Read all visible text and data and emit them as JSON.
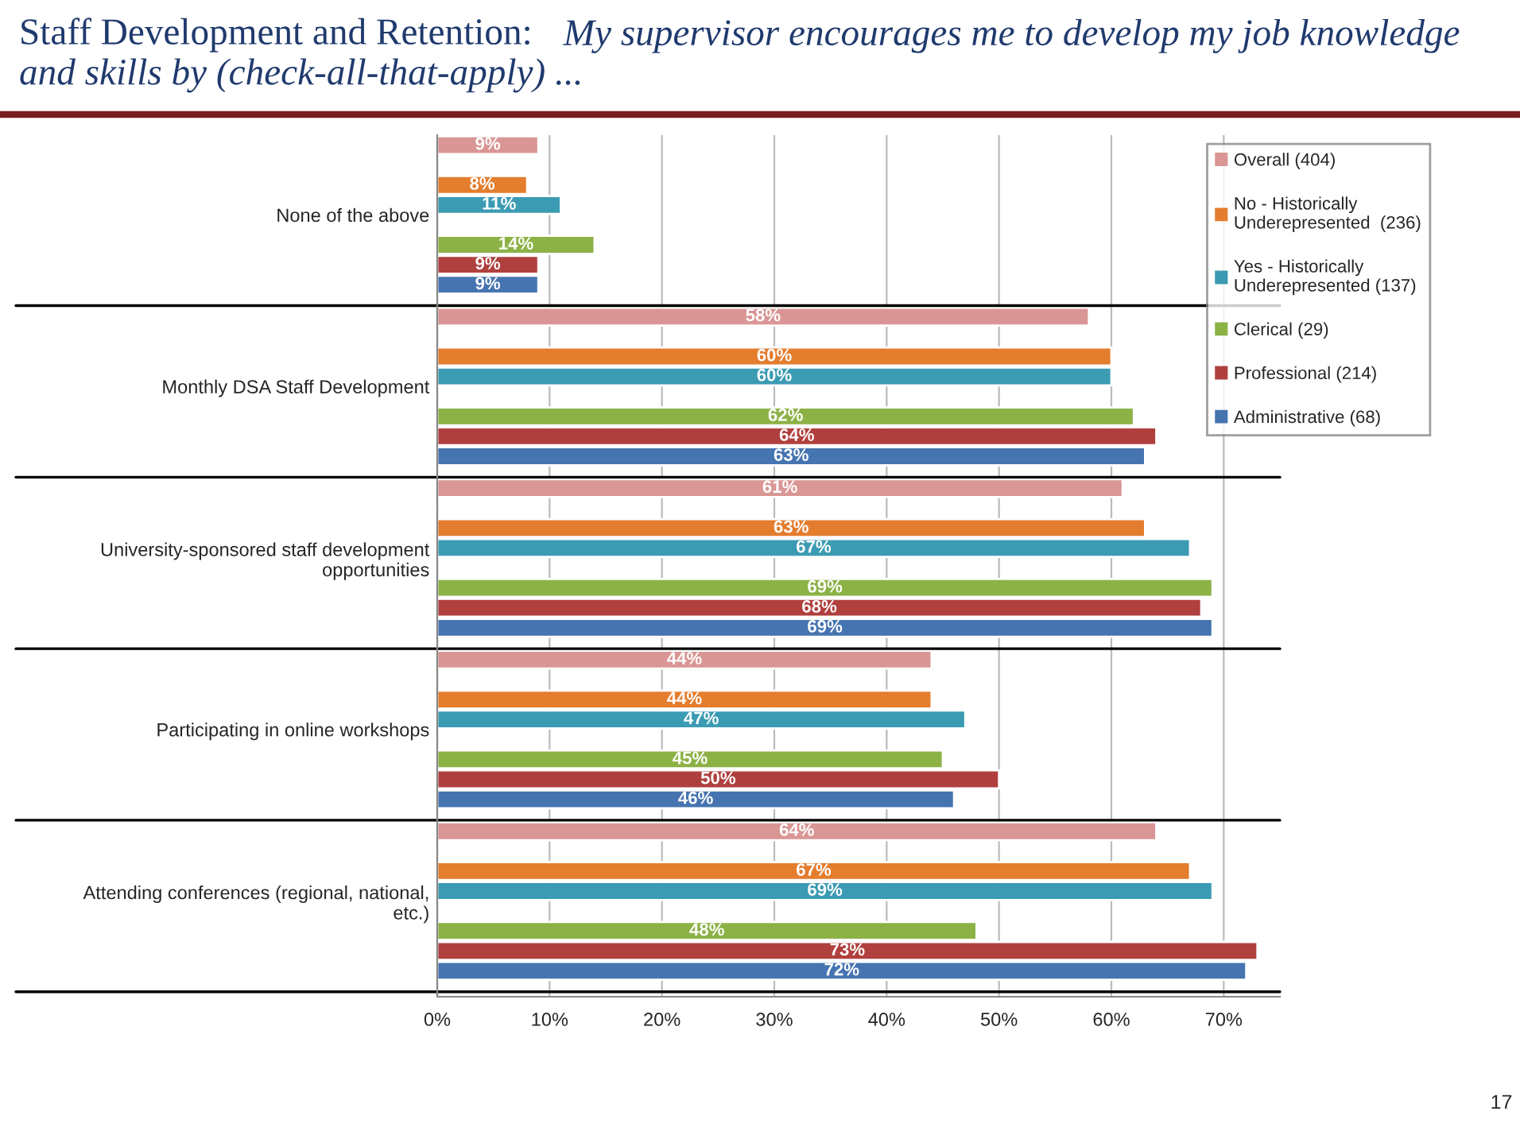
{
  "chart_data": {
    "type": "bar",
    "orientation": "horizontal",
    "title": "Staff Development and Retention:",
    "subtitle": "My supervisor encourages me to develop my job knowledge and skills by (check-all-that-apply) ...",
    "categories": [
      "None of the above",
      "Monthly DSA Staff Development",
      "University-sponsored staff development\nopportunities",
      "Participating in online workshops",
      "Attending conferences (regional, national,\netc.)"
    ],
    "series": [
      {
        "name": "Overall (404)",
        "color": "#d99694",
        "values": [
          9,
          58,
          61,
          44,
          64
        ],
        "value_labels": [
          "9%",
          "58%",
          "61%",
          "44%",
          "64%"
        ]
      },
      {
        "name": "No - Historically\nUnderepresented  (236)",
        "color": "#e47d2e",
        "values": [
          8,
          60,
          63,
          44,
          67
        ],
        "value_labels": [
          "8%",
          "60%",
          "63%",
          "44%",
          "67%"
        ]
      },
      {
        "name": "Yes - Historically\nUnderepresented (137)",
        "color": "#3b9bb3",
        "values": [
          11,
          60,
          67,
          47,
          69
        ],
        "value_labels": [
          "11%",
          "60%",
          "67%",
          "47%",
          "69%"
        ]
      },
      {
        "name": "Clerical (29)",
        "color": "#8cb246",
        "values": [
          14,
          62,
          69,
          45,
          48
        ],
        "value_labels": [
          "14%",
          "62%",
          "69%",
          "45%",
          "48%"
        ]
      },
      {
        "name": "Professional (214)",
        "color": "#b0403e",
        "values": [
          9,
          64,
          68,
          50,
          73
        ],
        "value_labels": [
          "9%",
          "64%",
          "68%",
          "50%",
          "73%"
        ]
      },
      {
        "name": "Administrative (68)",
        "color": "#4674b0",
        "values": [
          9,
          63,
          69,
          46,
          72
        ],
        "value_labels": [
          "9%",
          "63%",
          "69%",
          "46%",
          "72%"
        ]
      }
    ],
    "xlim": [
      0,
      75
    ],
    "xticks": [
      {
        "value": 0,
        "label": "0%"
      },
      {
        "value": 10,
        "label": "10%"
      },
      {
        "value": 20,
        "label": "20%"
      },
      {
        "value": 30,
        "label": "30%"
      },
      {
        "value": 40,
        "label": "40%"
      },
      {
        "value": 50,
        "label": "50%"
      },
      {
        "value": 60,
        "label": "60%"
      },
      {
        "value": 70,
        "label": "70%"
      }
    ],
    "grid": "x",
    "legend": "top right",
    "annotations": [
      "17"
    ]
  }
}
